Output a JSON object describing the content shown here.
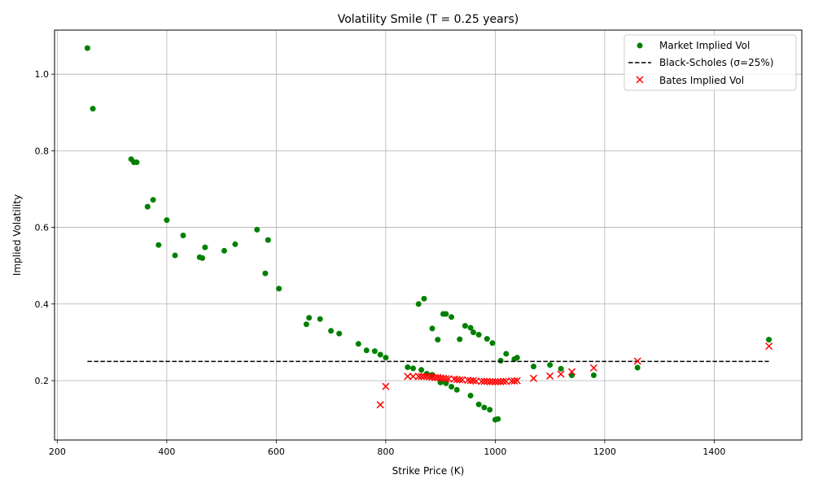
{
  "chart_data": {
    "type": "scatter",
    "title": "Volatility Smile (T = 0.25 years)",
    "xlabel": "Strike Price (K)",
    "ylabel": "Implied Volatility",
    "xlim": [
      195,
      1560
    ],
    "ylim": [
      0.045,
      1.115
    ],
    "xticks": [
      200,
      400,
      600,
      800,
      1000,
      1200,
      1400
    ],
    "yticks": [
      0.2,
      0.4,
      0.6,
      0.8,
      1.0
    ],
    "xtick_labels": [
      "200",
      "400",
      "600",
      "800",
      "1000",
      "1200",
      "1400"
    ],
    "ytick_labels": [
      "0.2",
      "0.4",
      "0.6",
      "0.8",
      "1.0"
    ],
    "grid": true,
    "legend_position": "top-right",
    "series": [
      {
        "name": "Market Implied Vol",
        "kind": "scatter-dot",
        "color": "#008000",
        "points": [
          [
            255,
            1.068
          ],
          [
            265,
            0.91
          ],
          [
            335,
            0.778
          ],
          [
            340,
            0.77
          ],
          [
            345,
            0.77
          ],
          [
            365,
            0.654
          ],
          [
            375,
            0.672
          ],
          [
            385,
            0.554
          ],
          [
            400,
            0.619
          ],
          [
            415,
            0.527
          ],
          [
            430,
            0.579
          ],
          [
            460,
            0.522
          ],
          [
            465,
            0.52
          ],
          [
            470,
            0.548
          ],
          [
            505,
            0.539
          ],
          [
            525,
            0.556
          ],
          [
            565,
            0.594
          ],
          [
            580,
            0.48
          ],
          [
            585,
            0.567
          ],
          [
            605,
            0.44
          ],
          [
            655,
            0.347
          ],
          [
            660,
            0.364
          ],
          [
            680,
            0.361
          ],
          [
            700,
            0.33
          ],
          [
            715,
            0.323
          ],
          [
            750,
            0.296
          ],
          [
            765,
            0.279
          ],
          [
            780,
            0.277
          ],
          [
            790,
            0.268
          ],
          [
            800,
            0.26
          ],
          [
            840,
            0.235
          ],
          [
            850,
            0.232
          ],
          [
            860,
            0.4
          ],
          [
            865,
            0.228
          ],
          [
            870,
            0.414
          ],
          [
            875,
            0.218
          ],
          [
            885,
            0.336
          ],
          [
            885,
            0.215
          ],
          [
            895,
            0.307
          ],
          [
            900,
            0.195
          ],
          [
            905,
            0.374
          ],
          [
            910,
            0.374
          ],
          [
            910,
            0.193
          ],
          [
            920,
            0.366
          ],
          [
            920,
            0.184
          ],
          [
            930,
            0.176
          ],
          [
            935,
            0.308
          ],
          [
            945,
            0.343
          ],
          [
            955,
            0.338
          ],
          [
            955,
            0.161
          ],
          [
            960,
            0.326
          ],
          [
            970,
            0.32
          ],
          [
            970,
            0.138
          ],
          [
            980,
            0.13
          ],
          [
            985,
            0.309
          ],
          [
            990,
            0.124
          ],
          [
            995,
            0.298
          ],
          [
            1000,
            0.098
          ],
          [
            1005,
            0.1
          ],
          [
            1010,
            0.252
          ],
          [
            1020,
            0.27
          ],
          [
            1035,
            0.256
          ],
          [
            1040,
            0.26
          ],
          [
            1070,
            0.237
          ],
          [
            1100,
            0.241
          ],
          [
            1120,
            0.231
          ],
          [
            1140,
            0.214
          ],
          [
            1180,
            0.214
          ],
          [
            1260,
            0.234
          ],
          [
            1500,
            0.307
          ]
        ]
      },
      {
        "name": "Black-Scholes (σ=25%)",
        "kind": "dashed-line",
        "color": "#000000",
        "points": [
          [
            255,
            0.25
          ],
          [
            1500,
            0.25
          ]
        ]
      },
      {
        "name": "Bates Implied Vol",
        "kind": "scatter-x",
        "color": "#ff0000",
        "points": [
          [
            790,
            0.137
          ],
          [
            800,
            0.185
          ],
          [
            840,
            0.211
          ],
          [
            850,
            0.211
          ],
          [
            860,
            0.211
          ],
          [
            865,
            0.211
          ],
          [
            870,
            0.211
          ],
          [
            875,
            0.211
          ],
          [
            880,
            0.21
          ],
          [
            885,
            0.209
          ],
          [
            890,
            0.208
          ],
          [
            895,
            0.208
          ],
          [
            900,
            0.207
          ],
          [
            905,
            0.206
          ],
          [
            910,
            0.205
          ],
          [
            915,
            0.205
          ],
          [
            925,
            0.204
          ],
          [
            930,
            0.203
          ],
          [
            935,
            0.202
          ],
          [
            940,
            0.202
          ],
          [
            950,
            0.201
          ],
          [
            955,
            0.2
          ],
          [
            960,
            0.2
          ],
          [
            965,
            0.199
          ],
          [
            975,
            0.198
          ],
          [
            980,
            0.198
          ],
          [
            985,
            0.198
          ],
          [
            990,
            0.197
          ],
          [
            995,
            0.197
          ],
          [
            1000,
            0.197
          ],
          [
            1005,
            0.197
          ],
          [
            1010,
            0.197
          ],
          [
            1015,
            0.198
          ],
          [
            1020,
            0.198
          ],
          [
            1030,
            0.199
          ],
          [
            1035,
            0.199
          ],
          [
            1040,
            0.2
          ],
          [
            1070,
            0.206
          ],
          [
            1100,
            0.212
          ],
          [
            1120,
            0.217
          ],
          [
            1140,
            0.223
          ],
          [
            1180,
            0.233
          ],
          [
            1260,
            0.251
          ],
          [
            1500,
            0.29
          ]
        ]
      }
    ]
  }
}
